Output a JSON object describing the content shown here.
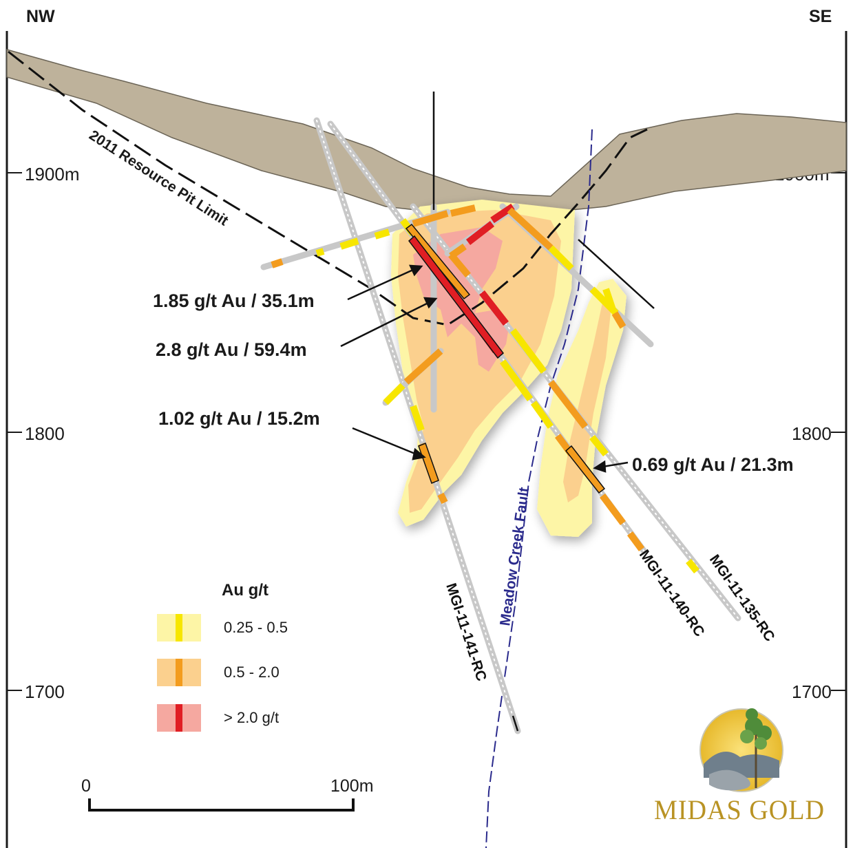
{
  "orientation": {
    "left": "NW",
    "right": "SE"
  },
  "elevations": {
    "e1900_left": "1900m",
    "e1900_right": "1900m",
    "e1800_left": "1800",
    "e1800_right": "1800",
    "e1700_left": "1700",
    "e1700_right": "1700"
  },
  "pit_limit_label": "2011 Resource Pit Limit",
  "fault_label": "Meadow Creek Fault",
  "intercepts": [
    {
      "text": "1.85 g/t Au / 35.1m"
    },
    {
      "text": "2.8 g/t Au / 59.4m"
    },
    {
      "text": "1.02 g/t Au / 15.2m"
    },
    {
      "text": "0.69 g/t Au / 21.3m"
    }
  ],
  "drill_holes": [
    {
      "label": "MGI-11-141-RC"
    },
    {
      "label": "MGI-11-140-RC"
    },
    {
      "label": "MGI-11-135-RC"
    }
  ],
  "legend": {
    "title": "Au g/t",
    "items": [
      {
        "label": "0.25 - 0.5",
        "fill": "#fdf5a6",
        "bar": "#f7e600"
      },
      {
        "label": "0.5 - 2.0",
        "fill": "#fbd08e",
        "bar": "#f39c1e"
      },
      {
        "label": "> 2.0 g/t",
        "fill": "#f5a8a0",
        "bar": "#e01e24"
      }
    ]
  },
  "scale_bar": {
    "start": "0",
    "end": "100m"
  },
  "logo": {
    "text": "MIDAS GOLD"
  },
  "colors": {
    "overburden": "#beb29b",
    "low_grade": "#fdf5a6",
    "mid_grade": "#fbd08e",
    "high_grade": "#f5a8a0",
    "fault": "#2a2a8c",
    "drill_trace": "#c8c8c8"
  }
}
